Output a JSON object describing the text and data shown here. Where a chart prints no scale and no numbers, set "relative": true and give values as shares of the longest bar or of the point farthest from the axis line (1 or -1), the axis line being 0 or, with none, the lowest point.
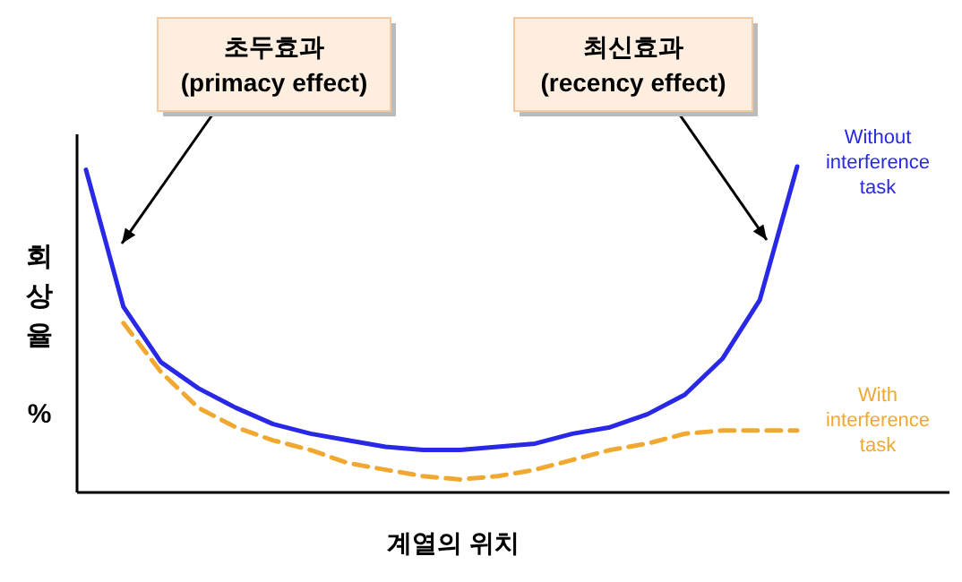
{
  "chart_data": {
    "type": "line",
    "relative": true,
    "xlabel": "계열의 위치",
    "ylabel": "회상율 %",
    "categories": [
      null,
      null,
      null,
      null,
      null,
      null,
      null,
      null,
      null,
      null,
      null,
      null,
      null,
      null,
      null,
      null,
      null,
      null,
      null,
      null
    ],
    "series": [
      {
        "name": "Without interference task",
        "color": "#2828e6",
        "line_style": "solid",
        "values": [
          0.99,
          0.57,
          0.4,
          0.32,
          0.26,
          0.21,
          0.18,
          0.16,
          0.14,
          0.13,
          0.13,
          0.14,
          0.15,
          0.18,
          0.2,
          0.24,
          0.3,
          0.41,
          0.59,
          1
        ]
      },
      {
        "name": "With interference task",
        "color": "#f0a830",
        "line_style": "dashed",
        "values": [
          null,
          0.52,
          0.37,
          0.26,
          0.2,
          0.16,
          0.13,
          0.09,
          0.07,
          0.05,
          0.04,
          0.05,
          0.07,
          0.1,
          0.13,
          0.15,
          0.18,
          0.19,
          0.19,
          0.19
        ]
      }
    ],
    "annotations": [
      "초두효과\n(primacy effect)",
      "최신효과\n(recency effect)"
    ]
  }
}
